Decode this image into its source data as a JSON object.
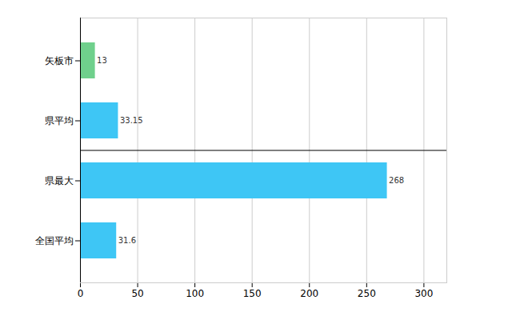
{
  "chart_data": {
    "type": "bar",
    "orientation": "horizontal",
    "categories": [
      "矢板市",
      "県平均",
      "県最大",
      "全国平均"
    ],
    "values": [
      13,
      33.15,
      268,
      31.6
    ],
    "colors": [
      "#6fd08c",
      "#3ec6f5",
      "#3ec6f5",
      "#3ec6f5"
    ],
    "xlim": [
      0,
      320
    ],
    "xticks": [
      0,
      50,
      100,
      150,
      200,
      250,
      300
    ],
    "grid": true,
    "data_labels": true
  }
}
